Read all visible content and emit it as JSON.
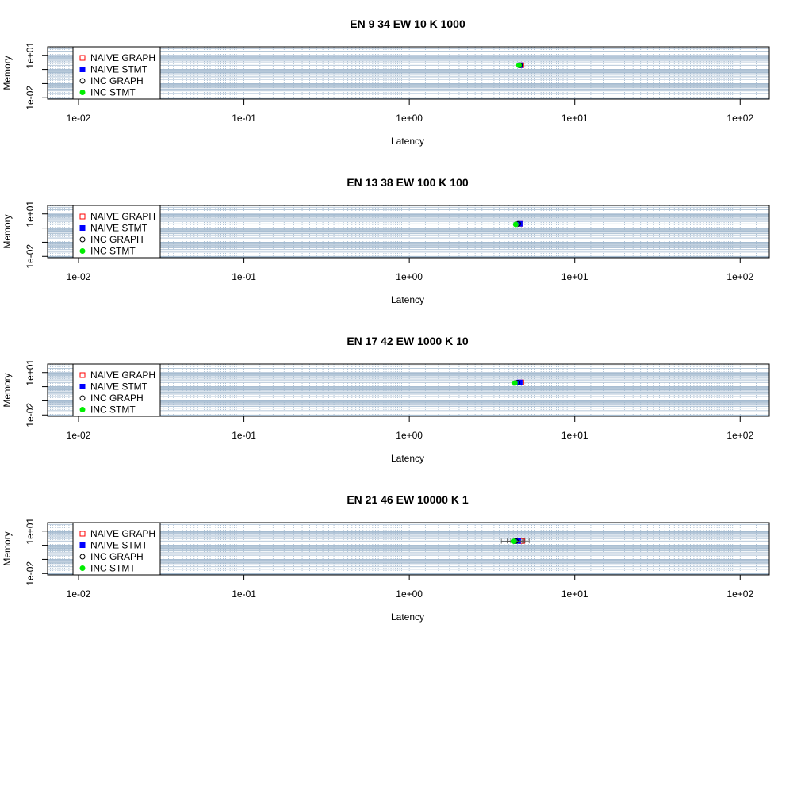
{
  "chart_data": [
    {
      "type": "scatter",
      "title": "EN 9 34 EW 10 K 1000",
      "xlabel": "Latency",
      "ylabel": "Memory",
      "xscale": "log",
      "yscale": "log",
      "xlim": [
        0.0065,
        150
      ],
      "ylim": [
        0.008,
        40
      ],
      "xticks": [
        "1e-02",
        "1e-01",
        "1e+00",
        "1e+01",
        "1e+02"
      ],
      "yticks": [
        "1e-02",
        "1e+01"
      ],
      "grid": true,
      "legend_position": "top-left",
      "legend": [
        "NAIVE GRAPH",
        "NAIVE STMT",
        "INC GRAPH",
        "INC STMT"
      ],
      "series": [
        {
          "name": "NAIVE GRAPH",
          "marker": "open-square",
          "color": "#ff0000",
          "points": [
            {
              "x": 4.75,
              "y": 2.0
            }
          ]
        },
        {
          "name": "NAIVE STMT",
          "marker": "filled-square",
          "color": "#0000ff",
          "points": [
            {
              "x": 4.7,
              "y": 2.0
            }
          ]
        },
        {
          "name": "INC GRAPH",
          "marker": "open-circle",
          "color": "#000000",
          "points": [
            {
              "x": 4.65,
              "y": 2.0
            }
          ]
        },
        {
          "name": "INC STMT",
          "marker": "filled-circle",
          "color": "#00ee00",
          "points": [
            {
              "x": 4.6,
              "y": 2.0
            }
          ]
        }
      ]
    },
    {
      "type": "scatter",
      "title": "EN 13 38 EW 100 K 100",
      "xlabel": "Latency",
      "ylabel": "Memory",
      "xscale": "log",
      "yscale": "log",
      "xlim": [
        0.0065,
        150
      ],
      "ylim": [
        0.008,
        40
      ],
      "xticks": [
        "1e-02",
        "1e-01",
        "1e+00",
        "1e+01",
        "1e+02"
      ],
      "yticks": [
        "1e-02",
        "1e+01"
      ],
      "grid": true,
      "legend_position": "top-left",
      "legend": [
        "NAIVE GRAPH",
        "NAIVE STMT",
        "INC GRAPH",
        "INC STMT"
      ],
      "series": [
        {
          "name": "NAIVE GRAPH",
          "marker": "open-square",
          "color": "#ff0000",
          "points": [
            {
              "x": 4.7,
              "y": 2.0
            }
          ]
        },
        {
          "name": "NAIVE STMT",
          "marker": "filled-square",
          "color": "#0000ff",
          "points": [
            {
              "x": 4.65,
              "y": 2.0
            }
          ]
        },
        {
          "name": "INC GRAPH",
          "marker": "open-circle",
          "color": "#000000",
          "points": [
            {
              "x": 4.55,
              "y": 2.0
            }
          ]
        },
        {
          "name": "INC STMT",
          "marker": "filled-circle",
          "color": "#00ee00",
          "points": [
            {
              "x": 4.4,
              "y": 1.8
            }
          ]
        }
      ]
    },
    {
      "type": "scatter",
      "title": "EN 17 42 EW 1000 K 10",
      "xlabel": "Latency",
      "ylabel": "Memory",
      "xscale": "log",
      "yscale": "log",
      "xlim": [
        0.0065,
        150
      ],
      "ylim": [
        0.008,
        40
      ],
      "xticks": [
        "1e-02",
        "1e-01",
        "1e+00",
        "1e+01",
        "1e+02"
      ],
      "yticks": [
        "1e-02",
        "1e+01"
      ],
      "grid": true,
      "legend_position": "top-left",
      "legend": [
        "NAIVE GRAPH",
        "NAIVE STMT",
        "INC GRAPH",
        "INC STMT"
      ],
      "series": [
        {
          "name": "NAIVE GRAPH",
          "marker": "open-square",
          "color": "#ff0000",
          "points": [
            {
              "x": 4.75,
              "y": 2.0
            }
          ]
        },
        {
          "name": "NAIVE STMT",
          "marker": "filled-square",
          "color": "#0000ff",
          "points": [
            {
              "x": 4.65,
              "y": 2.0
            }
          ]
        },
        {
          "name": "INC GRAPH",
          "marker": "open-circle",
          "color": "#000000",
          "points": [
            {
              "x": 4.5,
              "y": 1.9
            }
          ]
        },
        {
          "name": "INC STMT",
          "marker": "filled-circle",
          "color": "#00ee00",
          "points": [
            {
              "x": 4.35,
              "y": 1.8
            }
          ]
        }
      ]
    },
    {
      "type": "scatter",
      "title": "EN 21 46 EW 10000 K 1",
      "xlabel": "Latency",
      "ylabel": "Memory",
      "xscale": "log",
      "yscale": "log",
      "xlim": [
        0.0065,
        150
      ],
      "ylim": [
        0.008,
        40
      ],
      "xticks": [
        "1e-02",
        "1e-01",
        "1e+00",
        "1e+01",
        "1e+02"
      ],
      "yticks": [
        "1e-02",
        "1e+01"
      ],
      "grid": true,
      "legend_position": "top-left",
      "legend": [
        "NAIVE GRAPH",
        "NAIVE STMT",
        "INC GRAPH",
        "INC STMT"
      ],
      "series": [
        {
          "name": "NAIVE GRAPH",
          "marker": "open-square",
          "color": "#ff0000",
          "points": [
            {
              "x": 4.8,
              "y": 2.0,
              "err_x": [
                4.3,
                5.3
              ]
            }
          ]
        },
        {
          "name": "NAIVE STMT",
          "marker": "filled-square",
          "color": "#0000ff",
          "points": [
            {
              "x": 4.55,
              "y": 2.0,
              "err_x": [
                4.1,
                5.0
              ]
            }
          ]
        },
        {
          "name": "INC GRAPH",
          "marker": "open-circle",
          "color": "#000000",
          "points": [
            {
              "x": 4.4,
              "y": 2.0,
              "err_x": [
                3.9,
                4.9
              ]
            }
          ]
        },
        {
          "name": "INC STMT",
          "marker": "filled-circle",
          "color": "#00ee00",
          "points": [
            {
              "x": 4.3,
              "y": 1.9,
              "err_x": [
                3.6,
                4.8
              ]
            }
          ]
        }
      ]
    }
  ]
}
